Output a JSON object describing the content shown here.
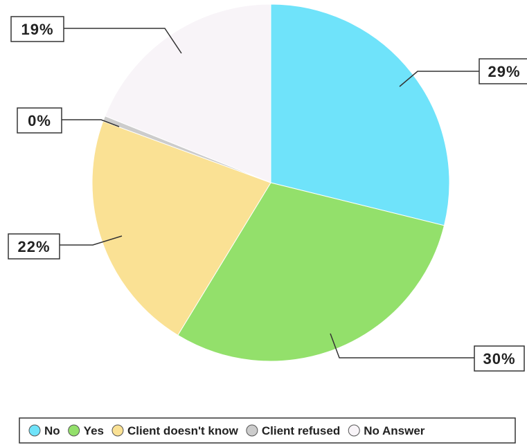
{
  "chart_data": {
    "type": "pie",
    "categories": [
      "No",
      "Yes",
      "Client doesn't know",
      "Client refused",
      "No Answer"
    ],
    "values": [
      29,
      30,
      22,
      0.5,
      19
    ],
    "labels": [
      "29%",
      "30%",
      "22%",
      "0%",
      "19%"
    ],
    "colors": [
      "#6fe3fa",
      "#93e06b",
      "#fae194",
      "#cccccc",
      "#f8f4f8"
    ],
    "legend_position": "bottom"
  }
}
